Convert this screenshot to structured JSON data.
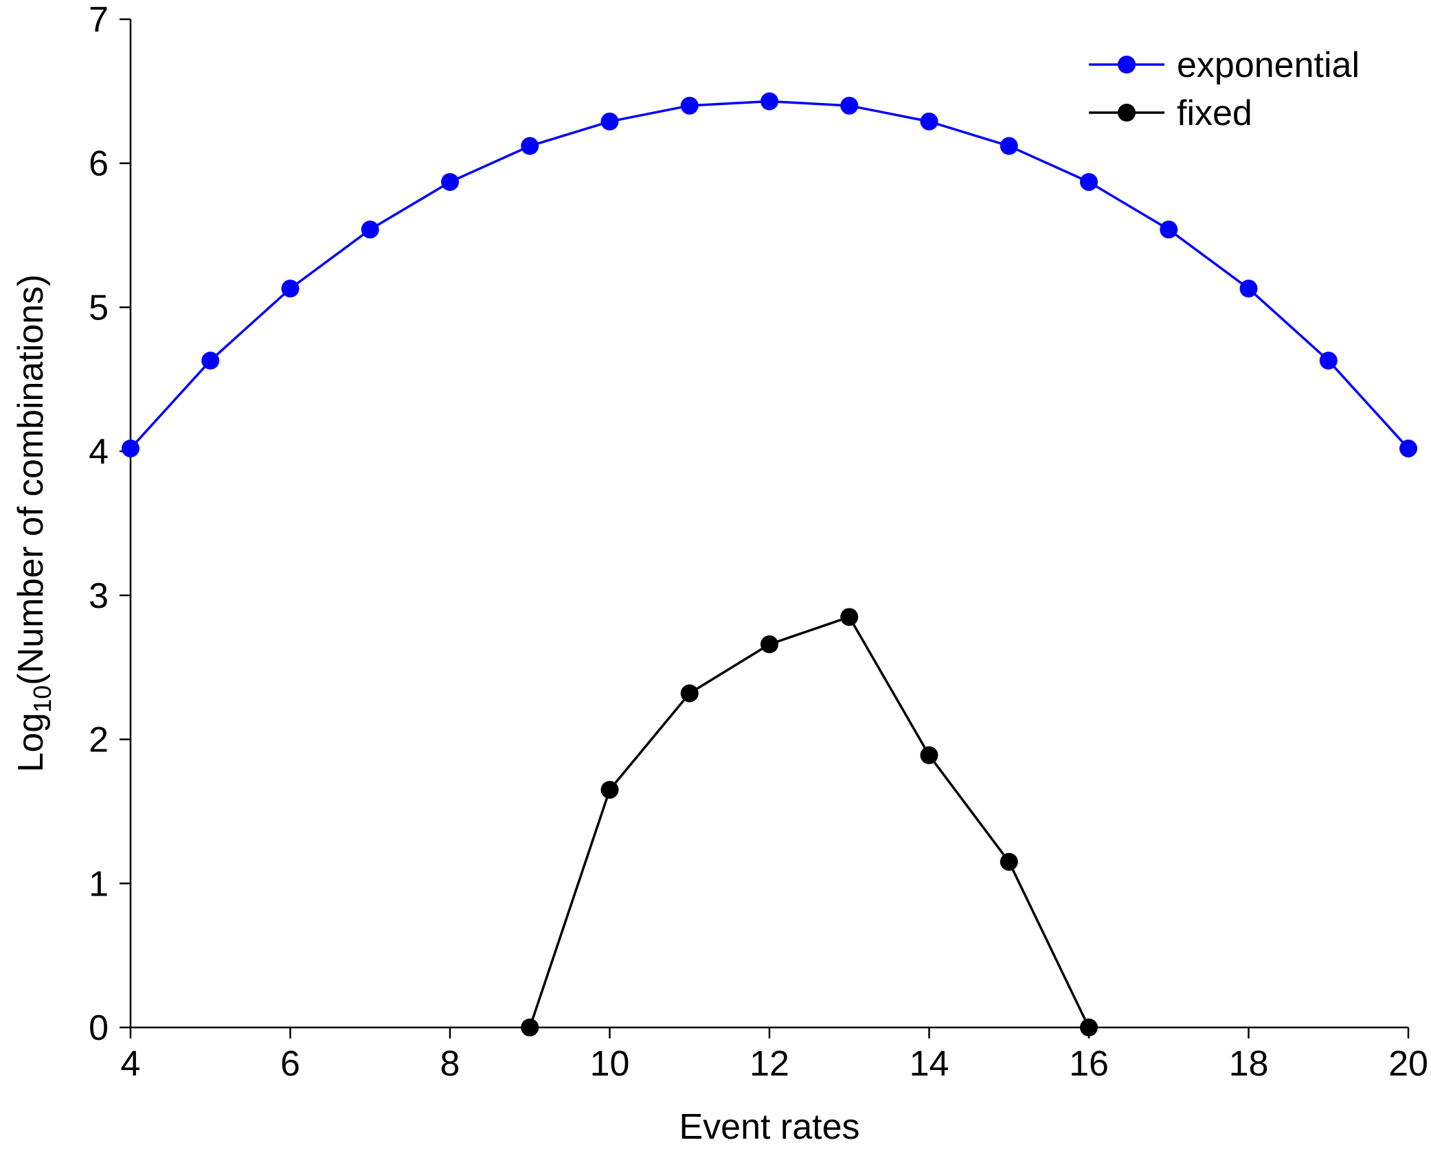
{
  "chart_data": {
    "type": "line",
    "title": "",
    "xlabel": "Event rates",
    "ylabel": {
      "base": "Log",
      "subscript": "10",
      "rest": "(Number of combinations)"
    },
    "xlim": [
      4,
      20
    ],
    "ylim": [
      0,
      7
    ],
    "xticks": [
      4,
      6,
      8,
      10,
      12,
      14,
      16,
      18,
      20
    ],
    "yticks": [
      0,
      1,
      2,
      3,
      4,
      5,
      6,
      7
    ],
    "grid": false,
    "legend_position": "top-right",
    "series": [
      {
        "name": "exponential",
        "color": "#0000ff",
        "x": [
          4,
          5,
          6,
          7,
          8,
          9,
          10,
          11,
          12,
          13,
          14,
          15,
          16,
          17,
          18,
          19,
          20
        ],
        "y": [
          4.02,
          4.63,
          5.13,
          5.54,
          5.87,
          6.12,
          6.29,
          6.4,
          6.43,
          6.4,
          6.29,
          6.12,
          5.87,
          5.54,
          5.13,
          4.63,
          4.02
        ]
      },
      {
        "name": "fixed",
        "color": "#000000",
        "x": [
          9,
          10,
          11,
          12,
          13,
          14,
          15,
          16
        ],
        "y": [
          0.0,
          1.65,
          2.32,
          2.66,
          2.85,
          1.89,
          1.15,
          0.0
        ]
      }
    ]
  }
}
